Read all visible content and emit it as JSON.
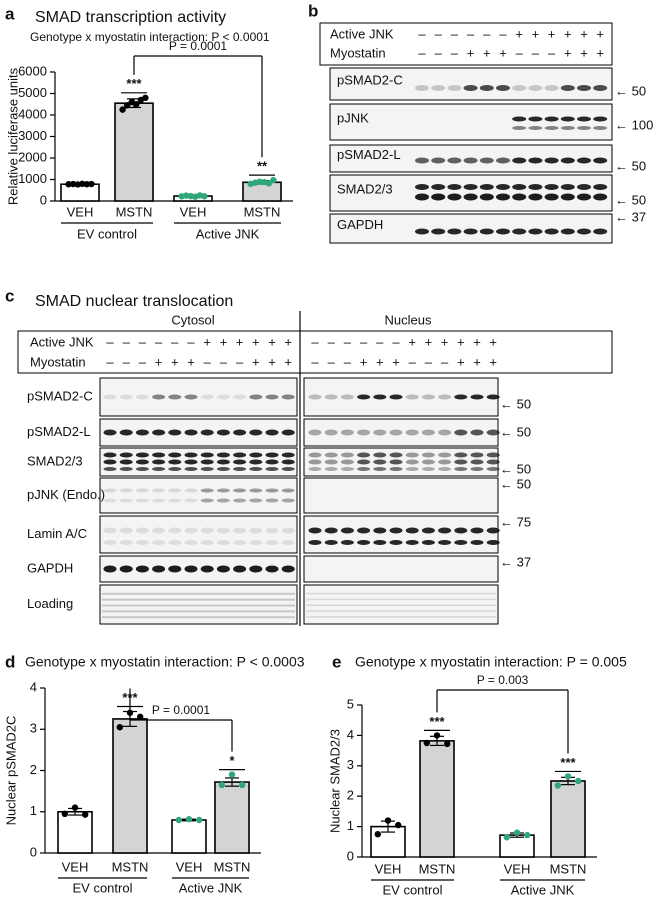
{
  "chart_data": [
    {
      "type": "bar",
      "panel": "a",
      "title": "SMAD transcription activity",
      "subtitle": "Genotype x myostatin interaction: P < 0.0001",
      "y_label": "Relative luciferase units",
      "categories": [
        "VEH",
        "MSTN",
        "VEH",
        "MSTN"
      ],
      "groups": [
        "EV control",
        "Active JNK"
      ],
      "values": [
        780,
        4550,
        230,
        870
      ],
      "errors": [
        20,
        200,
        30,
        80
      ],
      "points": [
        [
          780,
          790,
          770,
          800,
          780,
          790
        ],
        [
          4250,
          4450,
          4600,
          4500,
          4700,
          4800
        ],
        [
          220,
          250,
          230,
          200,
          260,
          220
        ],
        [
          800,
          850,
          900,
          880,
          820,
          970
        ]
      ],
      "colors": [
        "#ffffff",
        "#d4d4d4",
        "#ffffff",
        "#d4d4d4"
      ],
      "point_colors": [
        "#000000",
        "#000000",
        "#2ea87a",
        "#2ea87a"
      ],
      "significance": [
        null,
        "***",
        null,
        "**"
      ],
      "comparison_label": "P = 0.0001",
      "ylim": [
        0,
        6000
      ],
      "yticks": [
        0,
        1000,
        2000,
        3000,
        4000,
        5000,
        6000
      ]
    },
    {
      "type": "bar",
      "panel": "d",
      "title": "Genotype x myostatin interaction: P < 0.0003",
      "y_label": "Nuclear pSMAD2C",
      "categories": [
        "VEH",
        "MSTN",
        "VEH",
        "MSTN"
      ],
      "groups": [
        "EV control",
        "Active JNK"
      ],
      "values": [
        1.0,
        3.25,
        0.8,
        1.72
      ],
      "errors": [
        0.08,
        0.18,
        0.02,
        0.1
      ],
      "points": [
        [
          0.95,
          1.1,
          0.93
        ],
        [
          3.05,
          3.4,
          3.3
        ],
        [
          0.8,
          0.82,
          0.8
        ],
        [
          1.65,
          1.9,
          1.65
        ]
      ],
      "colors": [
        "#ffffff",
        "#d4d4d4",
        "#ffffff",
        "#d4d4d4"
      ],
      "point_colors": [
        "#000000",
        "#000000",
        "#2ea87a",
        "#2ea87a"
      ],
      "significance": [
        null,
        "***",
        null,
        "*"
      ],
      "comparison_label": "P = 0.0001",
      "ylim": [
        0,
        4
      ],
      "yticks": [
        0,
        1,
        2,
        3,
        4
      ]
    },
    {
      "type": "bar",
      "panel": "e",
      "title": "Genotype x myostatin interaction: P = 0.005",
      "y_label": "Nuclear SMAD2/3",
      "categories": [
        "VEH",
        "MSTN",
        "VEH",
        "MSTN"
      ],
      "groups": [
        "EV control",
        "Active JNK"
      ],
      "values": [
        1.0,
        3.82,
        0.72,
        2.5
      ],
      "errors": [
        0.18,
        0.15,
        0.07,
        0.12
      ],
      "points": [
        [
          0.75,
          1.2,
          1.05
        ],
        [
          3.75,
          4.0,
          3.72
        ],
        [
          0.65,
          0.8,
          0.72
        ],
        [
          2.35,
          2.65,
          2.5
        ]
      ],
      "colors": [
        "#ffffff",
        "#d4d4d4",
        "#ffffff",
        "#d4d4d4"
      ],
      "point_colors": [
        "#000000",
        "#000000",
        "#2ea87a",
        "#2ea87a"
      ],
      "significance": [
        null,
        "***",
        null,
        "***"
      ],
      "comparison_label": "P = 0.003",
      "ylim": [
        0,
        5
      ],
      "yticks": [
        0,
        1,
        2,
        3,
        4,
        5
      ]
    }
  ],
  "blot_b": {
    "panel": "b",
    "treatments": [
      {
        "name": "Active JNK",
        "signs": [
          "–",
          "–",
          "–",
          "–",
          "–",
          "–",
          "+",
          "+",
          "+",
          "+",
          "+",
          "+"
        ]
      },
      {
        "name": "Myostatin",
        "signs": [
          "–",
          "–",
          "–",
          "+",
          "+",
          "+",
          "–",
          "–",
          "–",
          "+",
          "+",
          "+"
        ]
      }
    ],
    "rows": [
      {
        "label": "pSMAD2-C",
        "marker": "← 50"
      },
      {
        "label": "pJNK",
        "marker": "← 100"
      },
      {
        "label": "pSMAD2-L",
        "marker": "← 50"
      },
      {
        "label": "SMAD2/3",
        "marker": "← 50"
      },
      {
        "label": "GAPDH",
        "marker": "← 37"
      }
    ]
  },
  "blot_c": {
    "panel": "c",
    "title": "SMAD nuclear translocation",
    "fractions": [
      "Cytosol",
      "Nucleus"
    ],
    "treatments": [
      {
        "name": "Active JNK",
        "signs": [
          "–",
          "–",
          "–",
          "–",
          "–",
          "–",
          "+",
          "+",
          "+",
          "+",
          "+",
          "+",
          "–",
          "–",
          "–",
          "–",
          "–",
          "–",
          "+",
          "+",
          "+",
          "+",
          "+",
          "+"
        ]
      },
      {
        "name": "Myostatin",
        "signs": [
          "–",
          "–",
          "–",
          "+",
          "+",
          "+",
          "–",
          "–",
          "–",
          "+",
          "+",
          "+",
          "–",
          "–",
          "–",
          "+",
          "+",
          "+",
          "–",
          "–",
          "–",
          "+",
          "+",
          "+"
        ]
      }
    ],
    "rows": [
      {
        "label": "pSMAD2-C",
        "marker": "← 50"
      },
      {
        "label": "pSMAD2-L",
        "marker": "← 50"
      },
      {
        "label": "SMAD2/3",
        "marker": "← 50"
      },
      {
        "label": "pJNK (Endo.)",
        "marker": "← 50"
      },
      {
        "label": "Lamin A/C",
        "marker": "← 75"
      },
      {
        "label": "GAPDH",
        "marker": "← 37"
      },
      {
        "label": "Loading",
        "marker": null
      }
    ]
  }
}
